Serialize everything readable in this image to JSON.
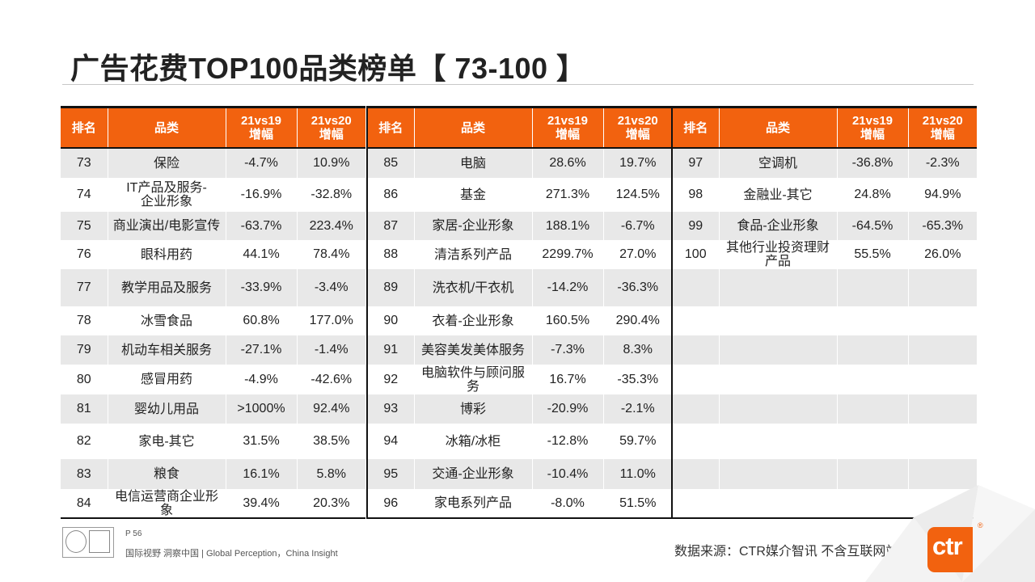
{
  "title": "广告花费TOP100品类榜单【 73-100 】",
  "headers": {
    "rank": "排名",
    "category": "品类",
    "v1": "21vs19\n增幅",
    "v2": "21vs20\n增幅"
  },
  "panels": [
    {
      "rows": [
        {
          "rank": "73",
          "category": "保险",
          "v1": "-4.7%",
          "v2": "10.9%"
        },
        {
          "rank": "74",
          "category": "IT产品及服务-\n企业形象",
          "v1": "-16.9%",
          "v2": "-32.8%"
        },
        {
          "rank": "75",
          "category": "商业演出/电影宣传",
          "v1": "-63.7%",
          "v2": "223.4%"
        },
        {
          "rank": "76",
          "category": "眼科用药",
          "v1": "44.1%",
          "v2": "78.4%"
        },
        {
          "rank": "77",
          "category": "教学用品及服务",
          "v1": "-33.9%",
          "v2": "-3.4%"
        },
        {
          "rank": "78",
          "category": "冰雪食品",
          "v1": "60.8%",
          "v2": "177.0%"
        },
        {
          "rank": "79",
          "category": "机动车相关服务",
          "v1": "-27.1%",
          "v2": "-1.4%"
        },
        {
          "rank": "80",
          "category": "感冒用药",
          "v1": "-4.9%",
          "v2": "-42.6%"
        },
        {
          "rank": "81",
          "category": "婴幼儿用品",
          "v1": ">1000%",
          "v2": "92.4%"
        },
        {
          "rank": "82",
          "category": "家电-其它",
          "v1": "31.5%",
          "v2": "38.5%"
        },
        {
          "rank": "83",
          "category": "粮食",
          "v1": "16.1%",
          "v2": "5.8%"
        },
        {
          "rank": "84",
          "category": "电信运营商企业形象",
          "v1": "39.4%",
          "v2": "20.3%"
        }
      ]
    },
    {
      "rows": [
        {
          "rank": "85",
          "category": "电脑",
          "v1": "28.6%",
          "v2": "19.7%"
        },
        {
          "rank": "86",
          "category": "基金",
          "v1": "271.3%",
          "v2": "124.5%"
        },
        {
          "rank": "87",
          "category": "家居-企业形象",
          "v1": "188.1%",
          "v2": "-6.7%"
        },
        {
          "rank": "88",
          "category": "清洁系列产品",
          "v1": "2299.7%",
          "v2": "27.0%"
        },
        {
          "rank": "89",
          "category": "洗衣机/干衣机",
          "v1": "-14.2%",
          "v2": "-36.3%"
        },
        {
          "rank": "90",
          "category": "衣着-企业形象",
          "v1": "160.5%",
          "v2": "290.4%"
        },
        {
          "rank": "91",
          "category": "美容美发美体服务",
          "v1": "-7.3%",
          "v2": "8.3%"
        },
        {
          "rank": "92",
          "category": "电脑软件与顾问服务",
          "v1": "16.7%",
          "v2": "-35.3%"
        },
        {
          "rank": "93",
          "category": "博彩",
          "v1": "-20.9%",
          "v2": "-2.1%"
        },
        {
          "rank": "94",
          "category": "冰箱/冰柜",
          "v1": "-12.8%",
          "v2": "59.7%"
        },
        {
          "rank": "95",
          "category": "交通-企业形象",
          "v1": "-10.4%",
          "v2": "11.0%"
        },
        {
          "rank": "96",
          "category": "家电系列产品",
          "v1": "-8.0%",
          "v2": "51.5%"
        }
      ]
    },
    {
      "rows": [
        {
          "rank": "97",
          "category": "空调机",
          "v1": "-36.8%",
          "v2": "-2.3%"
        },
        {
          "rank": "98",
          "category": "金融业-其它",
          "v1": "24.8%",
          "v2": "94.9%"
        },
        {
          "rank": "99",
          "category": "食品-企业形象",
          "v1": "-64.5%",
          "v2": "-65.3%"
        },
        {
          "rank": "100",
          "category": "其他行业投资理财产品",
          "v1": "55.5%",
          "v2": "26.0%"
        },
        {
          "rank": "",
          "category": "",
          "v1": "",
          "v2": ""
        },
        {
          "rank": "",
          "category": "",
          "v1": "",
          "v2": ""
        },
        {
          "rank": "",
          "category": "",
          "v1": "",
          "v2": ""
        },
        {
          "rank": "",
          "category": "",
          "v1": "",
          "v2": ""
        },
        {
          "rank": "",
          "category": "",
          "v1": "",
          "v2": ""
        },
        {
          "rank": "",
          "category": "",
          "v1": "",
          "v2": ""
        },
        {
          "rank": "",
          "category": "",
          "v1": "",
          "v2": ""
        },
        {
          "rank": "",
          "category": "",
          "v1": "",
          "v2": ""
        }
      ]
    }
  ],
  "footer": {
    "page": "P 56",
    "tagline": "国际视野  洞察中国 |  Global Perception，China Insight",
    "source": "数据来源：CTR媒介智讯  不含互联网站",
    "brand": "ctr",
    "brand_mark": "®",
    "certification_logos": [
      "certification-seal-icon",
      "quality-mark-icon"
    ]
  },
  "colors": {
    "header_bg": "#f2620f",
    "row_alt": "#e8e8e8",
    "brand": "#f2620f"
  }
}
